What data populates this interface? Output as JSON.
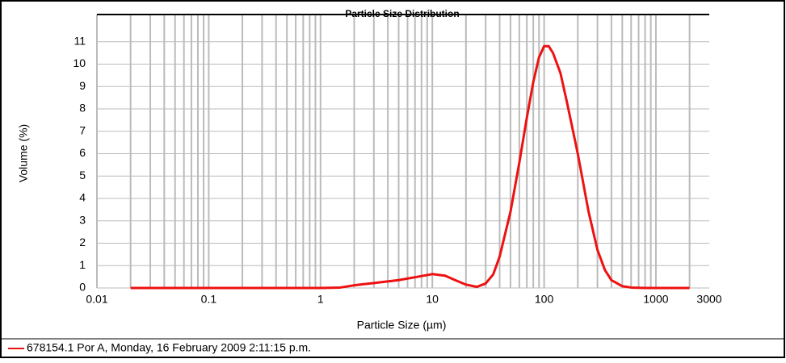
{
  "chart_data": {
    "type": "line",
    "title": "Particle Size Distribution",
    "x_label": "Particle Size (µm)",
    "y_label": "Volume (%)",
    "x": [
      0.02,
      0.1,
      0.5,
      1,
      1.5,
      2,
      3,
      5,
      7,
      10,
      13,
      16,
      20,
      25,
      30,
      35,
      40,
      50,
      60,
      70,
      80,
      90,
      100,
      110,
      120,
      140,
      160,
      200,
      250,
      300,
      350,
      400,
      500,
      600,
      800,
      1000,
      2000
    ],
    "series": [
      {
        "name": "678154.1  Por A, Monday, 16 February 2009 2:11:15 p.m.",
        "color": "#ee1111",
        "values": [
          0,
          0,
          0,
          0,
          0.02,
          0.12,
          0.22,
          0.35,
          0.48,
          0.62,
          0.55,
          0.35,
          0.15,
          0.05,
          0.2,
          0.6,
          1.4,
          3.4,
          5.6,
          7.6,
          9.2,
          10.3,
          10.8,
          10.8,
          10.5,
          9.6,
          8.3,
          6.0,
          3.4,
          1.7,
          0.8,
          0.35,
          0.08,
          0.02,
          0,
          0,
          0
        ]
      }
    ],
    "xscale": "log",
    "xlim": [
      0.01,
      3000
    ],
    "xticks": [
      0.01,
      0.1,
      1,
      10,
      100,
      1000,
      3000
    ],
    "ylim": [
      0,
      12
    ],
    "yticks": [
      0,
      1,
      2,
      3,
      4,
      5,
      6,
      7,
      8,
      9,
      10,
      11
    ],
    "grid": true
  }
}
